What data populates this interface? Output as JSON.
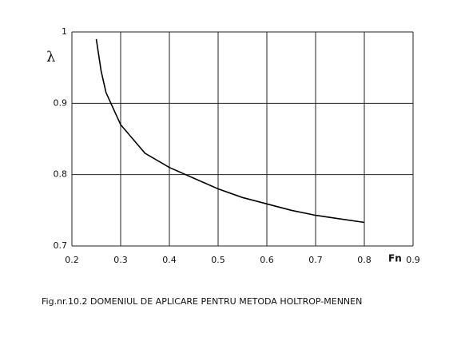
{
  "chart_data": {
    "type": "line",
    "title": "Fig.nr.10.2   DOMENIUL DE APLICARE PENTRU METODA HOLTROP-MENNEN",
    "xlabel": "Fn",
    "ylabel": "λ",
    "x": [
      0.25,
      0.26,
      0.27,
      0.28,
      0.3,
      0.35,
      0.4,
      0.45,
      0.5,
      0.55,
      0.6,
      0.65,
      0.7,
      0.75,
      0.8
    ],
    "values": [
      0.99,
      0.945,
      0.915,
      0.9,
      0.87,
      0.83,
      0.81,
      0.795,
      0.78,
      0.768,
      0.759,
      0.75,
      0.743,
      0.738,
      0.733
    ],
    "color": "#000000",
    "xlim": [
      0.2,
      0.9
    ],
    "xticks": [
      0.2,
      0.3,
      0.4,
      0.5,
      0.6,
      0.7,
      0.8,
      0.9
    ],
    "ylim": [
      0.7,
      1
    ],
    "yticks": [
      0.7,
      0.8,
      0.9,
      1
    ],
    "grid": true
  }
}
